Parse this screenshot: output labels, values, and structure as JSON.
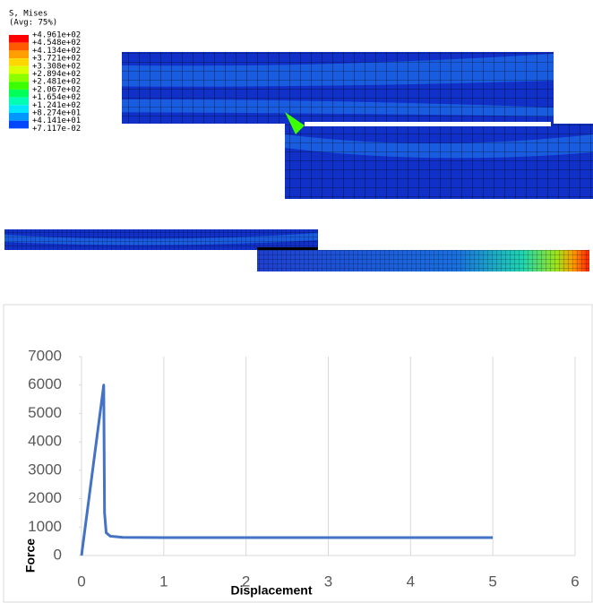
{
  "contour_legend": {
    "title": "S, Mises",
    "subtitle": "(Avg: 75%)",
    "labels": [
      "+4.961e+02",
      "+4.548e+02",
      "+4.134e+02",
      "+3.721e+02",
      "+3.308e+02",
      "+2.894e+02",
      "+2.481e+02",
      "+2.067e+02",
      "+1.654e+02",
      "+1.241e+02",
      "+8.274e+01",
      "+4.141e+01",
      "+7.117e-02"
    ],
    "colors": [
      "#ff0000",
      "#ff5a00",
      "#ff9e00",
      "#ffd700",
      "#d9ff00",
      "#8cff00",
      "#3cff00",
      "#00ff5a",
      "#00ffb4",
      "#00e6ff",
      "#0096ff",
      "#0046ff",
      "#0000ff"
    ]
  },
  "chart_data": {
    "type": "line",
    "x_label": "Displacement",
    "y_label": "Force",
    "x": [
      0,
      0.27,
      0.28,
      0.3,
      0.35,
      0.5,
      1,
      5
    ],
    "values": [
      0,
      6000,
      1500,
      800,
      680,
      640,
      630,
      630
    ],
    "color": "#4472c4",
    "xlim": [
      0,
      6
    ],
    "xticks": [
      0,
      1,
      2,
      3,
      4,
      5,
      6
    ],
    "ylim": [
      0,
      7000
    ],
    "yticks": [
      0,
      1000,
      2000,
      3000,
      4000,
      5000,
      6000,
      7000
    ],
    "grid": true
  }
}
